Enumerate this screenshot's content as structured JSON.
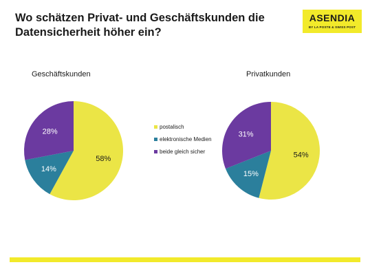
{
  "title": "Wo schätzen Privat- und Geschäftskunden die Datensicherheit höher ein?",
  "logo": {
    "main": "ASENDIA",
    "sub": "BY LA POSTE & SWISS POST"
  },
  "colors": {
    "accent": "#f2ea2a",
    "postalisch": "#ebe546",
    "elektronisch": "#2b7f9c",
    "gleich": "#6b3aa0"
  },
  "legend": [
    {
      "label": "postalisch",
      "color": "#ebe546"
    },
    {
      "label": "elektronische Medien",
      "color": "#2b7f9c"
    },
    {
      "label": "beide gleich sicher",
      "color": "#6b3aa0"
    }
  ],
  "chart_data": [
    {
      "type": "pie",
      "title": "Geschäftskunden",
      "categories": [
        "postalisch",
        "elektronische Medien",
        "beide gleich sicher"
      ],
      "values": [
        58,
        14,
        28
      ],
      "labels": [
        "58%",
        "14%",
        "28%"
      ],
      "legend": "right"
    },
    {
      "type": "pie",
      "title": "Privatkunden",
      "categories": [
        "postalisch",
        "elektronische Medien",
        "beide gleich sicher"
      ],
      "values": [
        54,
        15,
        31
      ],
      "labels": [
        "54%",
        "15%",
        "31%"
      ],
      "legend": "left"
    }
  ]
}
